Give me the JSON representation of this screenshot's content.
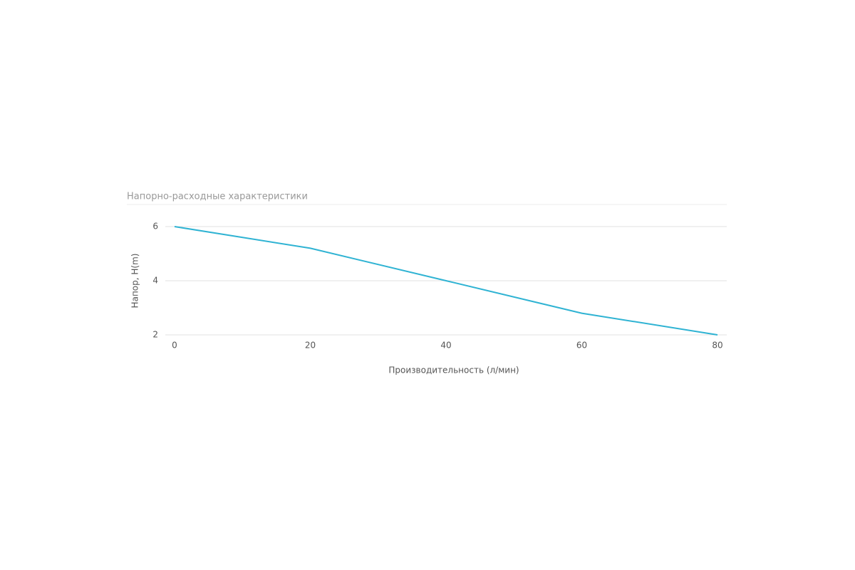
{
  "chart_data": {
    "type": "line",
    "title": "Напорно-расходные характеристики",
    "x_label": "Производительность (л/мин)",
    "y_label": "Напор, H(m)",
    "x": [
      0,
      20,
      40,
      60,
      80
    ],
    "series": [
      {
        "name": null,
        "color": "#2fb3d3",
        "values": [
          6,
          5.2,
          4,
          2.8,
          2
        ]
      }
    ],
    "xlim": [
      0,
      80
    ],
    "xticks": [
      0,
      20,
      40,
      60,
      80
    ],
    "ylim": [
      2,
      6
    ],
    "yticks": [
      2,
      4,
      6
    ],
    "grid": true
  }
}
